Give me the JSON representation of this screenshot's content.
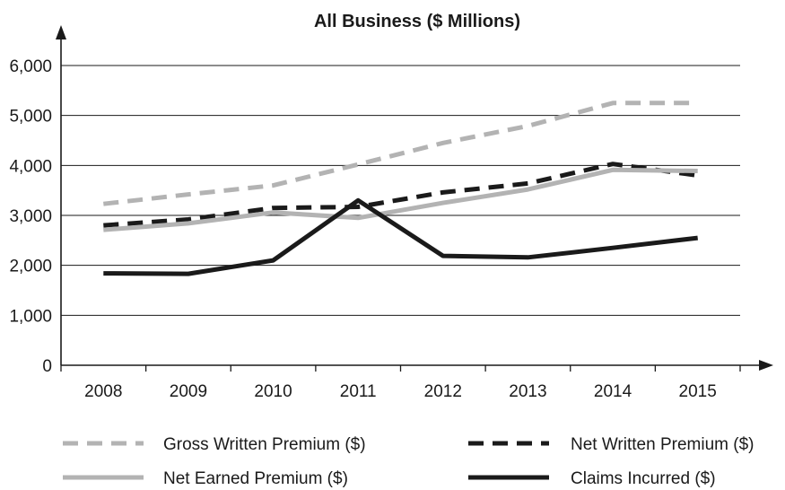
{
  "chart_data": {
    "type": "line",
    "title": "All Business ($ Millions)",
    "xlabel": "",
    "ylabel": "",
    "categories": [
      "2008",
      "2009",
      "2010",
      "2011",
      "2012",
      "2013",
      "2014",
      "2015"
    ],
    "ylim": [
      0,
      6000
    ],
    "yticks": [
      0,
      1000,
      2000,
      3000,
      4000,
      5000,
      6000
    ],
    "ytick_labels": [
      "0",
      "1,000",
      "2,000",
      "3,000",
      "4,000",
      "5,000",
      "6,000"
    ],
    "grid": "horizontal",
    "legend_position": "bottom",
    "series": [
      {
        "name": "Gross Written Premium ($)",
        "values": [
          3230,
          3420,
          3600,
          4020,
          4450,
          4790,
          5250,
          5250
        ],
        "color": "#b3b3b3",
        "style": "dashed"
      },
      {
        "name": "Net Written Premium ($)",
        "values": [
          2800,
          2920,
          3150,
          3170,
          3460,
          3640,
          4030,
          3800
        ],
        "color": "#1a1a1a",
        "style": "dashed"
      },
      {
        "name": "Net Earned Premium ($)",
        "values": [
          2710,
          2840,
          3060,
          2950,
          3250,
          3520,
          3910,
          3890
        ],
        "color": "#b3b3b3",
        "style": "solid"
      },
      {
        "name": "Claims Incurred ($)",
        "values": [
          1840,
          1830,
          2100,
          3300,
          2190,
          2160,
          2350,
          2550
        ],
        "color": "#1a1a1a",
        "style": "solid"
      }
    ]
  }
}
